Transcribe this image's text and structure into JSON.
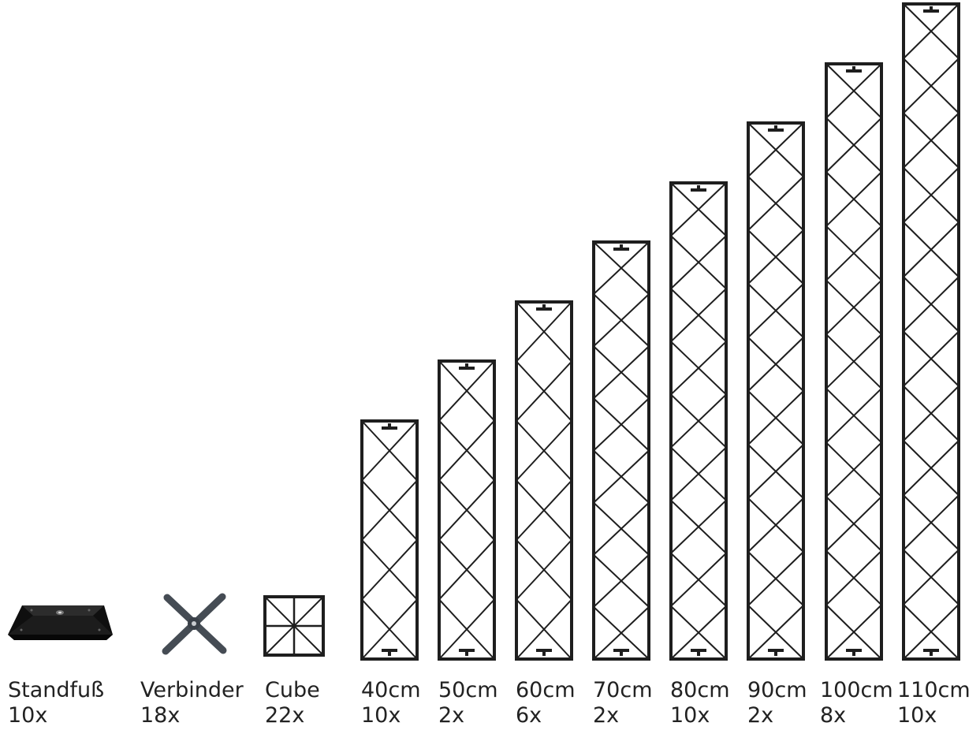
{
  "items": [
    {
      "kind": "standfuss",
      "name": "Standfuß",
      "qty": "10x",
      "icon": "base-plate-icon"
    },
    {
      "kind": "verbinder",
      "name": "Verbinder",
      "qty": "18x",
      "icon": "x-connector-icon"
    },
    {
      "kind": "cube",
      "name": "Cube",
      "qty": "22x",
      "icon": "cube-frame-icon"
    },
    {
      "kind": "truss",
      "name": "40cm",
      "qty": "10x",
      "length_cm": 40
    },
    {
      "kind": "truss",
      "name": "50cm",
      "qty": "2x",
      "length_cm": 50
    },
    {
      "kind": "truss",
      "name": "60cm",
      "qty": "6x",
      "length_cm": 60
    },
    {
      "kind": "truss",
      "name": "70cm",
      "qty": "2x",
      "length_cm": 70
    },
    {
      "kind": "truss",
      "name": "80cm",
      "qty": "10x",
      "length_cm": 80
    },
    {
      "kind": "truss",
      "name": "90cm",
      "qty": "2x",
      "length_cm": 90
    },
    {
      "kind": "truss",
      "name": "100cm",
      "qty": "8x",
      "length_cm": 100
    },
    {
      "kind": "truss",
      "name": "110cm",
      "qty": "10x",
      "length_cm": 110
    }
  ],
  "colors": {
    "stroke": "#1e1e1e",
    "base_fill": "#111111",
    "connector_fill": "#454c54",
    "text": "#222222"
  }
}
